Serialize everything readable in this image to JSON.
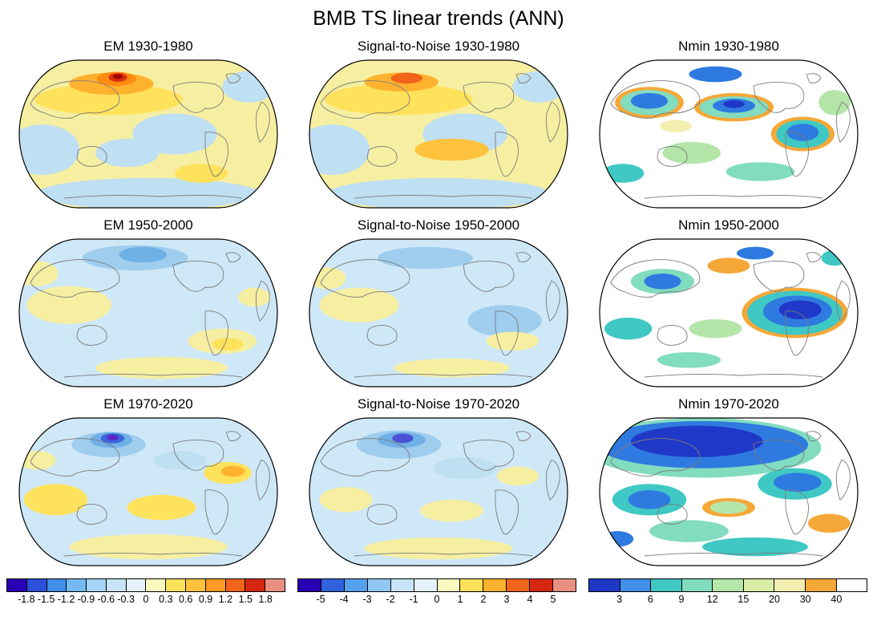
{
  "figure": {
    "title": "BMB TS linear trends (ANN)"
  },
  "chart_data": {
    "type": "heatmap",
    "title": "BMB TS linear trends (ANN)",
    "layout": "3x3 grid of Pacific-centered global maps (Robinson-like projection), three colorbars along bottom",
    "columns": [
      "EM",
      "Signal-to-Noise",
      "Nmin"
    ],
    "periods": [
      "1930-1980",
      "1950-2000",
      "1970-2020"
    ],
    "panels": [
      {
        "title": "EM 1930-1980",
        "colorbar": "em",
        "base": "#f6efa2",
        "blobs": [
          {
            "u": 0.5,
            "v": 0.88,
            "rx": 0.42,
            "ry": 0.1,
            "f": "#bfdff2"
          },
          {
            "u": 0.1,
            "v": 0.6,
            "rx": 0.14,
            "ry": 0.16,
            "f": "#bfdff2"
          },
          {
            "u": 0.6,
            "v": 0.5,
            "rx": 0.16,
            "ry": 0.13,
            "f": "#bfdff2"
          },
          {
            "u": 0.88,
            "v": 0.2,
            "rx": 0.1,
            "ry": 0.1,
            "f": "#bfdff2"
          },
          {
            "u": 0.42,
            "v": 0.62,
            "rx": 0.12,
            "ry": 0.09,
            "f": "#bfdff2"
          },
          {
            "u": 0.35,
            "v": 0.28,
            "rx": 0.28,
            "ry": 0.1,
            "f": "#ffe25c"
          },
          {
            "u": 0.7,
            "v": 0.75,
            "rx": 0.1,
            "ry": 0.06,
            "f": "#ffe25c"
          },
          {
            "u": 0.36,
            "v": 0.18,
            "rx": 0.16,
            "ry": 0.07,
            "f": "#ffb22e"
          },
          {
            "u": 0.38,
            "v": 0.15,
            "rx": 0.075,
            "ry": 0.045,
            "f": "#ff8a10"
          },
          {
            "u": 0.385,
            "v": 0.14,
            "rx": 0.035,
            "ry": 0.028,
            "f": "#dc2c10"
          },
          {
            "u": 0.385,
            "v": 0.135,
            "rx": 0.018,
            "ry": 0.015,
            "f": "#9e0000"
          }
        ]
      },
      {
        "title": "Signal-to-Noise 1930-1980",
        "colorbar": "s2n",
        "base": "#f6efa2",
        "blobs": [
          {
            "u": 0.5,
            "v": 0.88,
            "rx": 0.42,
            "ry": 0.1,
            "f": "#bfdff2"
          },
          {
            "u": 0.1,
            "v": 0.6,
            "rx": 0.14,
            "ry": 0.16,
            "f": "#bfdff2"
          },
          {
            "u": 0.6,
            "v": 0.5,
            "rx": 0.16,
            "ry": 0.13,
            "f": "#bfdff2"
          },
          {
            "u": 0.88,
            "v": 0.2,
            "rx": 0.1,
            "ry": 0.1,
            "f": "#bfdff2"
          },
          {
            "u": 0.35,
            "v": 0.28,
            "rx": 0.28,
            "ry": 0.1,
            "f": "#ffe25c"
          },
          {
            "u": 0.55,
            "v": 0.6,
            "rx": 0.14,
            "ry": 0.07,
            "f": "#ffc23c"
          },
          {
            "u": 0.36,
            "v": 0.17,
            "rx": 0.14,
            "ry": 0.06,
            "f": "#ffb22e"
          },
          {
            "u": 0.38,
            "v": 0.145,
            "rx": 0.06,
            "ry": 0.035,
            "f": "#f2641a"
          }
        ]
      },
      {
        "title": "Nmin 1930-1980",
        "colorbar": "nmin",
        "base": "#ffffff",
        "blobs": [
          {
            "u": 0.2,
            "v": 0.3,
            "rx": 0.13,
            "ry": 0.1,
            "f": "#f5a838"
          },
          {
            "u": 0.2,
            "v": 0.3,
            "rx": 0.11,
            "ry": 0.08,
            "f": "#82dcc0"
          },
          {
            "u": 0.2,
            "v": 0.29,
            "rx": 0.07,
            "ry": 0.05,
            "f": "#2f7ae0"
          },
          {
            "u": 0.52,
            "v": 0.33,
            "rx": 0.15,
            "ry": 0.09,
            "f": "#f5a838"
          },
          {
            "u": 0.52,
            "v": 0.33,
            "rx": 0.13,
            "ry": 0.07,
            "f": "#82dcc0"
          },
          {
            "u": 0.52,
            "v": 0.32,
            "rx": 0.08,
            "ry": 0.045,
            "f": "#2f7ae0"
          },
          {
            "u": 0.52,
            "v": 0.31,
            "rx": 0.04,
            "ry": 0.025,
            "f": "#2038c8"
          },
          {
            "u": 0.78,
            "v": 0.5,
            "rx": 0.12,
            "ry": 0.11,
            "f": "#f5a838"
          },
          {
            "u": 0.78,
            "v": 0.5,
            "rx": 0.1,
            "ry": 0.09,
            "f": "#3fc8c4"
          },
          {
            "u": 0.78,
            "v": 0.49,
            "rx": 0.06,
            "ry": 0.055,
            "f": "#2f7ae0"
          },
          {
            "u": 0.36,
            "v": 0.62,
            "rx": 0.11,
            "ry": 0.07,
            "f": "#b4e6aa"
          },
          {
            "u": 0.62,
            "v": 0.74,
            "rx": 0.13,
            "ry": 0.06,
            "f": "#82dcc0"
          },
          {
            "u": 0.1,
            "v": 0.75,
            "rx": 0.08,
            "ry": 0.06,
            "f": "#3fc8c4"
          },
          {
            "u": 0.9,
            "v": 0.3,
            "rx": 0.06,
            "ry": 0.08,
            "f": "#b4e6aa"
          },
          {
            "u": 0.45,
            "v": 0.12,
            "rx": 0.1,
            "ry": 0.05,
            "f": "#2f7ae0"
          },
          {
            "u": 0.3,
            "v": 0.45,
            "rx": 0.06,
            "ry": 0.04,
            "f": "#f2eeb0"
          }
        ]
      },
      {
        "title": "EM 1950-2000",
        "colorbar": "em",
        "base": "#cfe8f7",
        "blobs": [
          {
            "u": 0.2,
            "v": 0.45,
            "rx": 0.16,
            "ry": 0.12,
            "f": "#f6efa2"
          },
          {
            "u": 0.08,
            "v": 0.25,
            "rx": 0.08,
            "ry": 0.08,
            "f": "#f6efa2"
          },
          {
            "u": 0.55,
            "v": 0.85,
            "rx": 0.25,
            "ry": 0.07,
            "f": "#f6efa2"
          },
          {
            "u": 0.9,
            "v": 0.4,
            "rx": 0.06,
            "ry": 0.06,
            "f": "#f6efa2"
          },
          {
            "u": 0.45,
            "v": 0.15,
            "rx": 0.2,
            "ry": 0.08,
            "f": "#9fcdee"
          },
          {
            "u": 0.48,
            "v": 0.13,
            "rx": 0.09,
            "ry": 0.05,
            "f": "#6fb0e6"
          },
          {
            "u": 0.78,
            "v": 0.68,
            "rx": 0.13,
            "ry": 0.08,
            "f": "#f6efa2"
          },
          {
            "u": 0.8,
            "v": 0.7,
            "rx": 0.06,
            "ry": 0.04,
            "f": "#ffe25c"
          }
        ]
      },
      {
        "title": "Signal-to-Noise 1950-2000",
        "colorbar": "s2n",
        "base": "#cfe8f7",
        "blobs": [
          {
            "u": 0.2,
            "v": 0.45,
            "rx": 0.15,
            "ry": 0.11,
            "f": "#f6efa2"
          },
          {
            "u": 0.45,
            "v": 0.15,
            "rx": 0.18,
            "ry": 0.07,
            "f": "#9fcdee"
          },
          {
            "u": 0.75,
            "v": 0.55,
            "rx": 0.14,
            "ry": 0.1,
            "f": "#9fcdee"
          },
          {
            "u": 0.78,
            "v": 0.68,
            "rx": 0.1,
            "ry": 0.06,
            "f": "#f6efa2"
          },
          {
            "u": 0.55,
            "v": 0.85,
            "rx": 0.22,
            "ry": 0.06,
            "f": "#f6efa2"
          },
          {
            "u": 0.08,
            "v": 0.28,
            "rx": 0.07,
            "ry": 0.07,
            "f": "#f6efa2"
          }
        ]
      },
      {
        "title": "Nmin 1950-2000",
        "colorbar": "nmin",
        "base": "#ffffff",
        "blobs": [
          {
            "u": 0.75,
            "v": 0.5,
            "rx": 0.2,
            "ry": 0.16,
            "f": "#f5a838"
          },
          {
            "u": 0.75,
            "v": 0.5,
            "rx": 0.18,
            "ry": 0.14,
            "f": "#3fc8c4"
          },
          {
            "u": 0.76,
            "v": 0.49,
            "rx": 0.13,
            "ry": 0.1,
            "f": "#2f7ae0"
          },
          {
            "u": 0.77,
            "v": 0.48,
            "rx": 0.08,
            "ry": 0.06,
            "f": "#2038c8"
          },
          {
            "u": 0.25,
            "v": 0.3,
            "rx": 0.12,
            "ry": 0.08,
            "f": "#82dcc0"
          },
          {
            "u": 0.25,
            "v": 0.3,
            "rx": 0.07,
            "ry": 0.05,
            "f": "#2f7ae0"
          },
          {
            "u": 0.45,
            "v": 0.6,
            "rx": 0.1,
            "ry": 0.06,
            "f": "#b4e6aa"
          },
          {
            "u": 0.12,
            "v": 0.6,
            "rx": 0.09,
            "ry": 0.07,
            "f": "#3fc8c4"
          },
          {
            "u": 0.5,
            "v": 0.2,
            "rx": 0.08,
            "ry": 0.05,
            "f": "#f5a838"
          },
          {
            "u": 0.35,
            "v": 0.8,
            "rx": 0.12,
            "ry": 0.05,
            "f": "#82dcc0"
          },
          {
            "u": 0.6,
            "v": 0.12,
            "rx": 0.07,
            "ry": 0.04,
            "f": "#2f7ae0"
          },
          {
            "u": 0.9,
            "v": 0.15,
            "rx": 0.05,
            "ry": 0.05,
            "f": "#3fc8c4"
          }
        ]
      },
      {
        "title": "EM 1970-2020",
        "colorbar": "em",
        "base": "#cfe8f7",
        "blobs": [
          {
            "u": 0.15,
            "v": 0.55,
            "rx": 0.12,
            "ry": 0.1,
            "f": "#ffe25c"
          },
          {
            "u": 0.55,
            "v": 0.6,
            "rx": 0.13,
            "ry": 0.08,
            "f": "#ffe25c"
          },
          {
            "u": 0.8,
            "v": 0.38,
            "rx": 0.09,
            "ry": 0.07,
            "f": "#ffe25c"
          },
          {
            "u": 0.82,
            "v": 0.37,
            "rx": 0.045,
            "ry": 0.035,
            "f": "#ffb22e"
          },
          {
            "u": 0.5,
            "v": 0.85,
            "rx": 0.3,
            "ry": 0.08,
            "f": "#f6efa2"
          },
          {
            "u": 0.08,
            "v": 0.3,
            "rx": 0.07,
            "ry": 0.06,
            "f": "#f6efa2"
          },
          {
            "u": 0.62,
            "v": 0.3,
            "rx": 0.1,
            "ry": 0.06,
            "f": "#bfdff2"
          },
          {
            "u": 0.35,
            "v": 0.2,
            "rx": 0.14,
            "ry": 0.08,
            "f": "#9fcdee"
          },
          {
            "u": 0.36,
            "v": 0.17,
            "rx": 0.08,
            "ry": 0.05,
            "f": "#6fb0e6"
          },
          {
            "u": 0.365,
            "v": 0.16,
            "rx": 0.045,
            "ry": 0.032,
            "f": "#3c64dc"
          },
          {
            "u": 0.365,
            "v": 0.155,
            "rx": 0.022,
            "ry": 0.018,
            "f": "#5a28c8"
          }
        ]
      },
      {
        "title": "Signal-to-Noise 1970-2020",
        "colorbar": "s2n",
        "base": "#cfe8f7",
        "blobs": [
          {
            "u": 0.15,
            "v": 0.55,
            "rx": 0.1,
            "ry": 0.08,
            "f": "#f6efa2"
          },
          {
            "u": 0.55,
            "v": 0.62,
            "rx": 0.12,
            "ry": 0.07,
            "f": "#f6efa2"
          },
          {
            "u": 0.5,
            "v": 0.86,
            "rx": 0.28,
            "ry": 0.07,
            "f": "#f6efa2"
          },
          {
            "u": 0.8,
            "v": 0.4,
            "rx": 0.08,
            "ry": 0.06,
            "f": "#f6efa2"
          },
          {
            "u": 0.6,
            "v": 0.35,
            "rx": 0.12,
            "ry": 0.07,
            "f": "#bfdff2"
          },
          {
            "u": 0.35,
            "v": 0.2,
            "rx": 0.16,
            "ry": 0.09,
            "f": "#9fcdee"
          },
          {
            "u": 0.36,
            "v": 0.17,
            "rx": 0.09,
            "ry": 0.05,
            "f": "#6fb0e6"
          },
          {
            "u": 0.365,
            "v": 0.16,
            "rx": 0.04,
            "ry": 0.03,
            "f": "#4a50d4"
          }
        ]
      },
      {
        "title": "Nmin 1970-2020",
        "colorbar": "nmin",
        "base": "#ffffff",
        "blobs": [
          {
            "u": 0.4,
            "v": 0.22,
            "rx": 0.45,
            "ry": 0.19,
            "f": "#82dcc0"
          },
          {
            "u": 0.4,
            "v": 0.2,
            "rx": 0.4,
            "ry": 0.15,
            "f": "#2f7ae0"
          },
          {
            "u": 0.38,
            "v": 0.18,
            "rx": 0.25,
            "ry": 0.1,
            "f": "#2038c8"
          },
          {
            "u": 0.75,
            "v": 0.45,
            "rx": 0.14,
            "ry": 0.1,
            "f": "#3fc8c4"
          },
          {
            "u": 0.76,
            "v": 0.44,
            "rx": 0.09,
            "ry": 0.06,
            "f": "#2f7ae0"
          },
          {
            "u": 0.2,
            "v": 0.55,
            "rx": 0.14,
            "ry": 0.1,
            "f": "#3fc8c4"
          },
          {
            "u": 0.2,
            "v": 0.55,
            "rx": 0.08,
            "ry": 0.06,
            "f": "#2f7ae0"
          },
          {
            "u": 0.5,
            "v": 0.6,
            "rx": 0.1,
            "ry": 0.06,
            "f": "#f5a838"
          },
          {
            "u": 0.5,
            "v": 0.6,
            "rx": 0.07,
            "ry": 0.04,
            "f": "#b4e6aa"
          },
          {
            "u": 0.35,
            "v": 0.75,
            "rx": 0.15,
            "ry": 0.07,
            "f": "#82dcc0"
          },
          {
            "u": 0.88,
            "v": 0.7,
            "rx": 0.08,
            "ry": 0.06,
            "f": "#f5a838"
          },
          {
            "u": 0.6,
            "v": 0.85,
            "rx": 0.2,
            "ry": 0.06,
            "f": "#3fc8c4"
          },
          {
            "u": 0.08,
            "v": 0.8,
            "rx": 0.06,
            "ry": 0.05,
            "f": "#2f7ae0"
          }
        ]
      }
    ],
    "colorbars": [
      {
        "id": "em",
        "ticks": [
          "-1.8",
          "-1.5",
          "-1.2",
          "-0.9",
          "-0.6",
          "-0.3",
          "0",
          "0.3",
          "0.6",
          "0.9",
          "1.2",
          "1.5",
          "1.8"
        ],
        "colors": [
          "#2a00b4",
          "#2a50dc",
          "#3f8ee8",
          "#74b9f0",
          "#a5d5f6",
          "#c8e5f8",
          "#e4f1fa",
          "#fbf8c0",
          "#ffe25c",
          "#ffc23c",
          "#ff9a24",
          "#f2641a",
          "#d62810",
          "#e89080"
        ]
      },
      {
        "id": "s2n",
        "ticks": [
          "-5",
          "-4",
          "-3",
          "-2",
          "-1",
          "0",
          "1",
          "2",
          "3",
          "4",
          "5"
        ],
        "colors": [
          "#2a00b4",
          "#2f62dc",
          "#55a0ec",
          "#90c8f2",
          "#c8e5f8",
          "#e4f1fa",
          "#fbf8c0",
          "#ffe25c",
          "#ffb22e",
          "#f2641a",
          "#d62810",
          "#e89080"
        ]
      },
      {
        "id": "nmin",
        "ticks": [
          "3",
          "6",
          "9",
          "12",
          "15",
          "20",
          "30",
          "40"
        ],
        "colors": [
          "#2038c8",
          "#3f8ee8",
          "#3fc8c4",
          "#82dcc0",
          "#b4e6aa",
          "#d9eda6",
          "#f2eeb0",
          "#f5a838",
          "#ffffff"
        ]
      }
    ]
  }
}
